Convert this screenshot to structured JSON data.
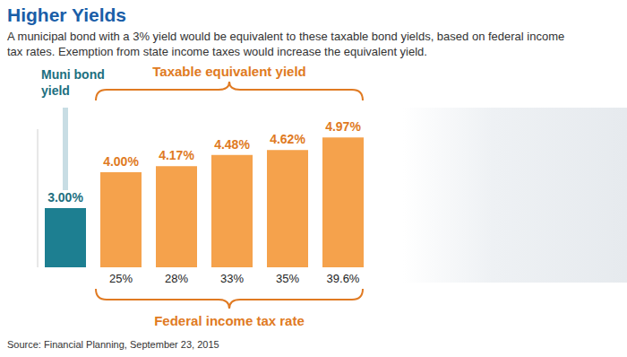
{
  "chart_data": {
    "type": "bar",
    "title": "Higher Yields",
    "subtitle": "A municipal bond with a 3% yield would be equivalent to these taxable bond yields, based on federal income tax rates. Exemption from state income taxes would increase the equivalent yield.",
    "categories": [
      null,
      "25%",
      "28%",
      "33%",
      "35%",
      "39.6%"
    ],
    "values": [
      3.0,
      4.0,
      4.17,
      4.48,
      4.62,
      4.97
    ],
    "value_labels": [
      "3.00%",
      "4.00%",
      "4.17%",
      "4.48%",
      "4.62%",
      "4.97%"
    ],
    "colors": [
      "#1d7f91",
      "#f5a24c",
      "#f5a24c",
      "#f5a24c",
      "#f5a24c",
      "#f5a24c"
    ],
    "ylim": [
      1.35,
      5.2
    ],
    "data_labels": true,
    "tick_labels": "x",
    "grid": false,
    "annotations": {
      "muni": "Muni bond yield",
      "taxable": "Taxable equivalent yield",
      "tax_rate": "Federal income tax rate"
    },
    "source": "Source: Financial Planning, September 23, 2015"
  }
}
